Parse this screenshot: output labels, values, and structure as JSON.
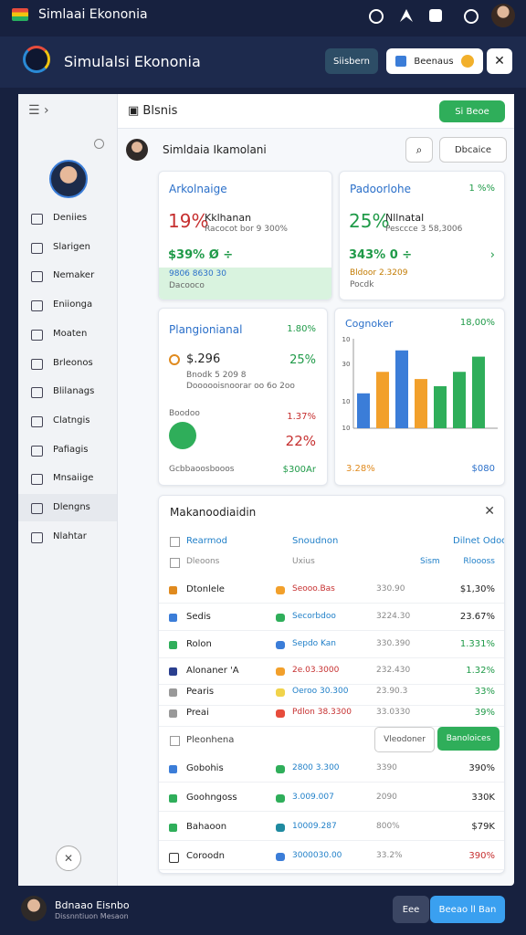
{
  "status_bar": {
    "app_name": "Simlaai Ekononia"
  },
  "header": {
    "title": "Simulalsi Ekononia",
    "button_primary": "Siisbern",
    "button_secondary": "Beenaus"
  },
  "sidebar": {
    "nav": [
      "Deniies",
      "Slarigen",
      "Nemaker",
      "Eniionga",
      "Moaten",
      "Brleonos",
      "Blilanags",
      "Clatngis",
      "Pafiagis",
      "Mnsaiige",
      "Dlengns",
      "Nlahtar"
    ]
  },
  "content": {
    "title": "Blsnis",
    "action": "Si Beoe",
    "user": "Simldaia Ikamolani",
    "filter": "Dbcaice"
  },
  "cards": [
    {
      "title": "Arkolnaige",
      "big": "19%",
      "label": "Kklhanan",
      "sub": "Racocot bor 9 300%",
      "value": "$39% Ø ÷",
      "foot": "9806 8630 30",
      "foot_sub": "Dacooco"
    },
    {
      "title": "Padoorlohe",
      "change": "1 %%",
      "big": "25%",
      "label": "Nllnatal",
      "sub": "Pesccce 3 58,3006",
      "value": "343% 0 ÷",
      "foot": "Bldoor 2.3209",
      "foot_sub": "Pocdk"
    },
    {
      "title": "Plangionianal",
      "change": "1.80%",
      "amount": "$.296",
      "pct": "25%",
      "note": "Bnodk 5 209 8",
      "note_sub": "Doooooisnoorar oo 6o 2oo",
      "label": "Boodoo",
      "change2": "1.37%",
      "pct2": "22%",
      "foot": "Gcbbaoosbooos",
      "foot_value": "$300Ar"
    }
  ],
  "chart": {
    "type": "bar",
    "title": "Cognoker",
    "change": "18,00%",
    "ylim": [
      0,
      100
    ],
    "axis_labels": [
      "10",
      "30",
      "10",
      "10"
    ],
    "values": [
      39,
      63,
      87,
      55,
      47,
      63,
      80
    ],
    "colors": [
      "#3b7dd8",
      "#f2a02b",
      "#3b7dd8",
      "#f2a02b",
      "#2fae5a",
      "#2fae5a",
      "#2fae5a"
    ],
    "footer_left": "3.28%",
    "footer_right": "$080"
  },
  "table": {
    "title": "Makanoodiaidin",
    "headers": [
      "Rearmod",
      "Snoudnon",
      "Dilnet Odoooo"
    ],
    "subheaders": [
      "Dleoons",
      "Uxius",
      "Sism",
      "Rloooss"
    ],
    "rows": [
      [
        "Dtonlele",
        "Seooo.Bas",
        "330.90",
        "$1,30%"
      ],
      [
        "Sedis",
        "Secorbdoo",
        "3224.30",
        "23.67%"
      ],
      [
        "Rolon",
        "Sepdo Kan",
        "330.390",
        "1.331%"
      ],
      [
        "Alonaner 'A",
        "2e.03.3000",
        "232.430",
        "1.32%"
      ],
      [
        "Pearis",
        "Oeroo 30.300",
        "23.90.3",
        "33%"
      ],
      [
        "Preai",
        "Pdlon 38.3300",
        "33.0330",
        "39%"
      ]
    ],
    "action_row": {
      "label": "Pleonhena",
      "buttons": [
        "Vleodoner",
        "Banoloices"
      ]
    },
    "rows_lower": [
      [
        "Gobohis",
        "2800 3.300",
        "3390",
        "390%"
      ],
      [
        "Goohngoss",
        "3.009.007",
        "2090",
        "330K"
      ],
      [
        "Bahaoon",
        "10009.287",
        "800%",
        "$79K"
      ],
      [
        "Coroodn",
        "3000030.00",
        "33.2%",
        "390%"
      ]
    ]
  },
  "footer": {
    "name": "Bdnaao Eisnbo",
    "subtitle": "Dissnntiuon Mesaon",
    "button_secondary": "Eee",
    "button_primary": "Beeao ll Ban"
  }
}
